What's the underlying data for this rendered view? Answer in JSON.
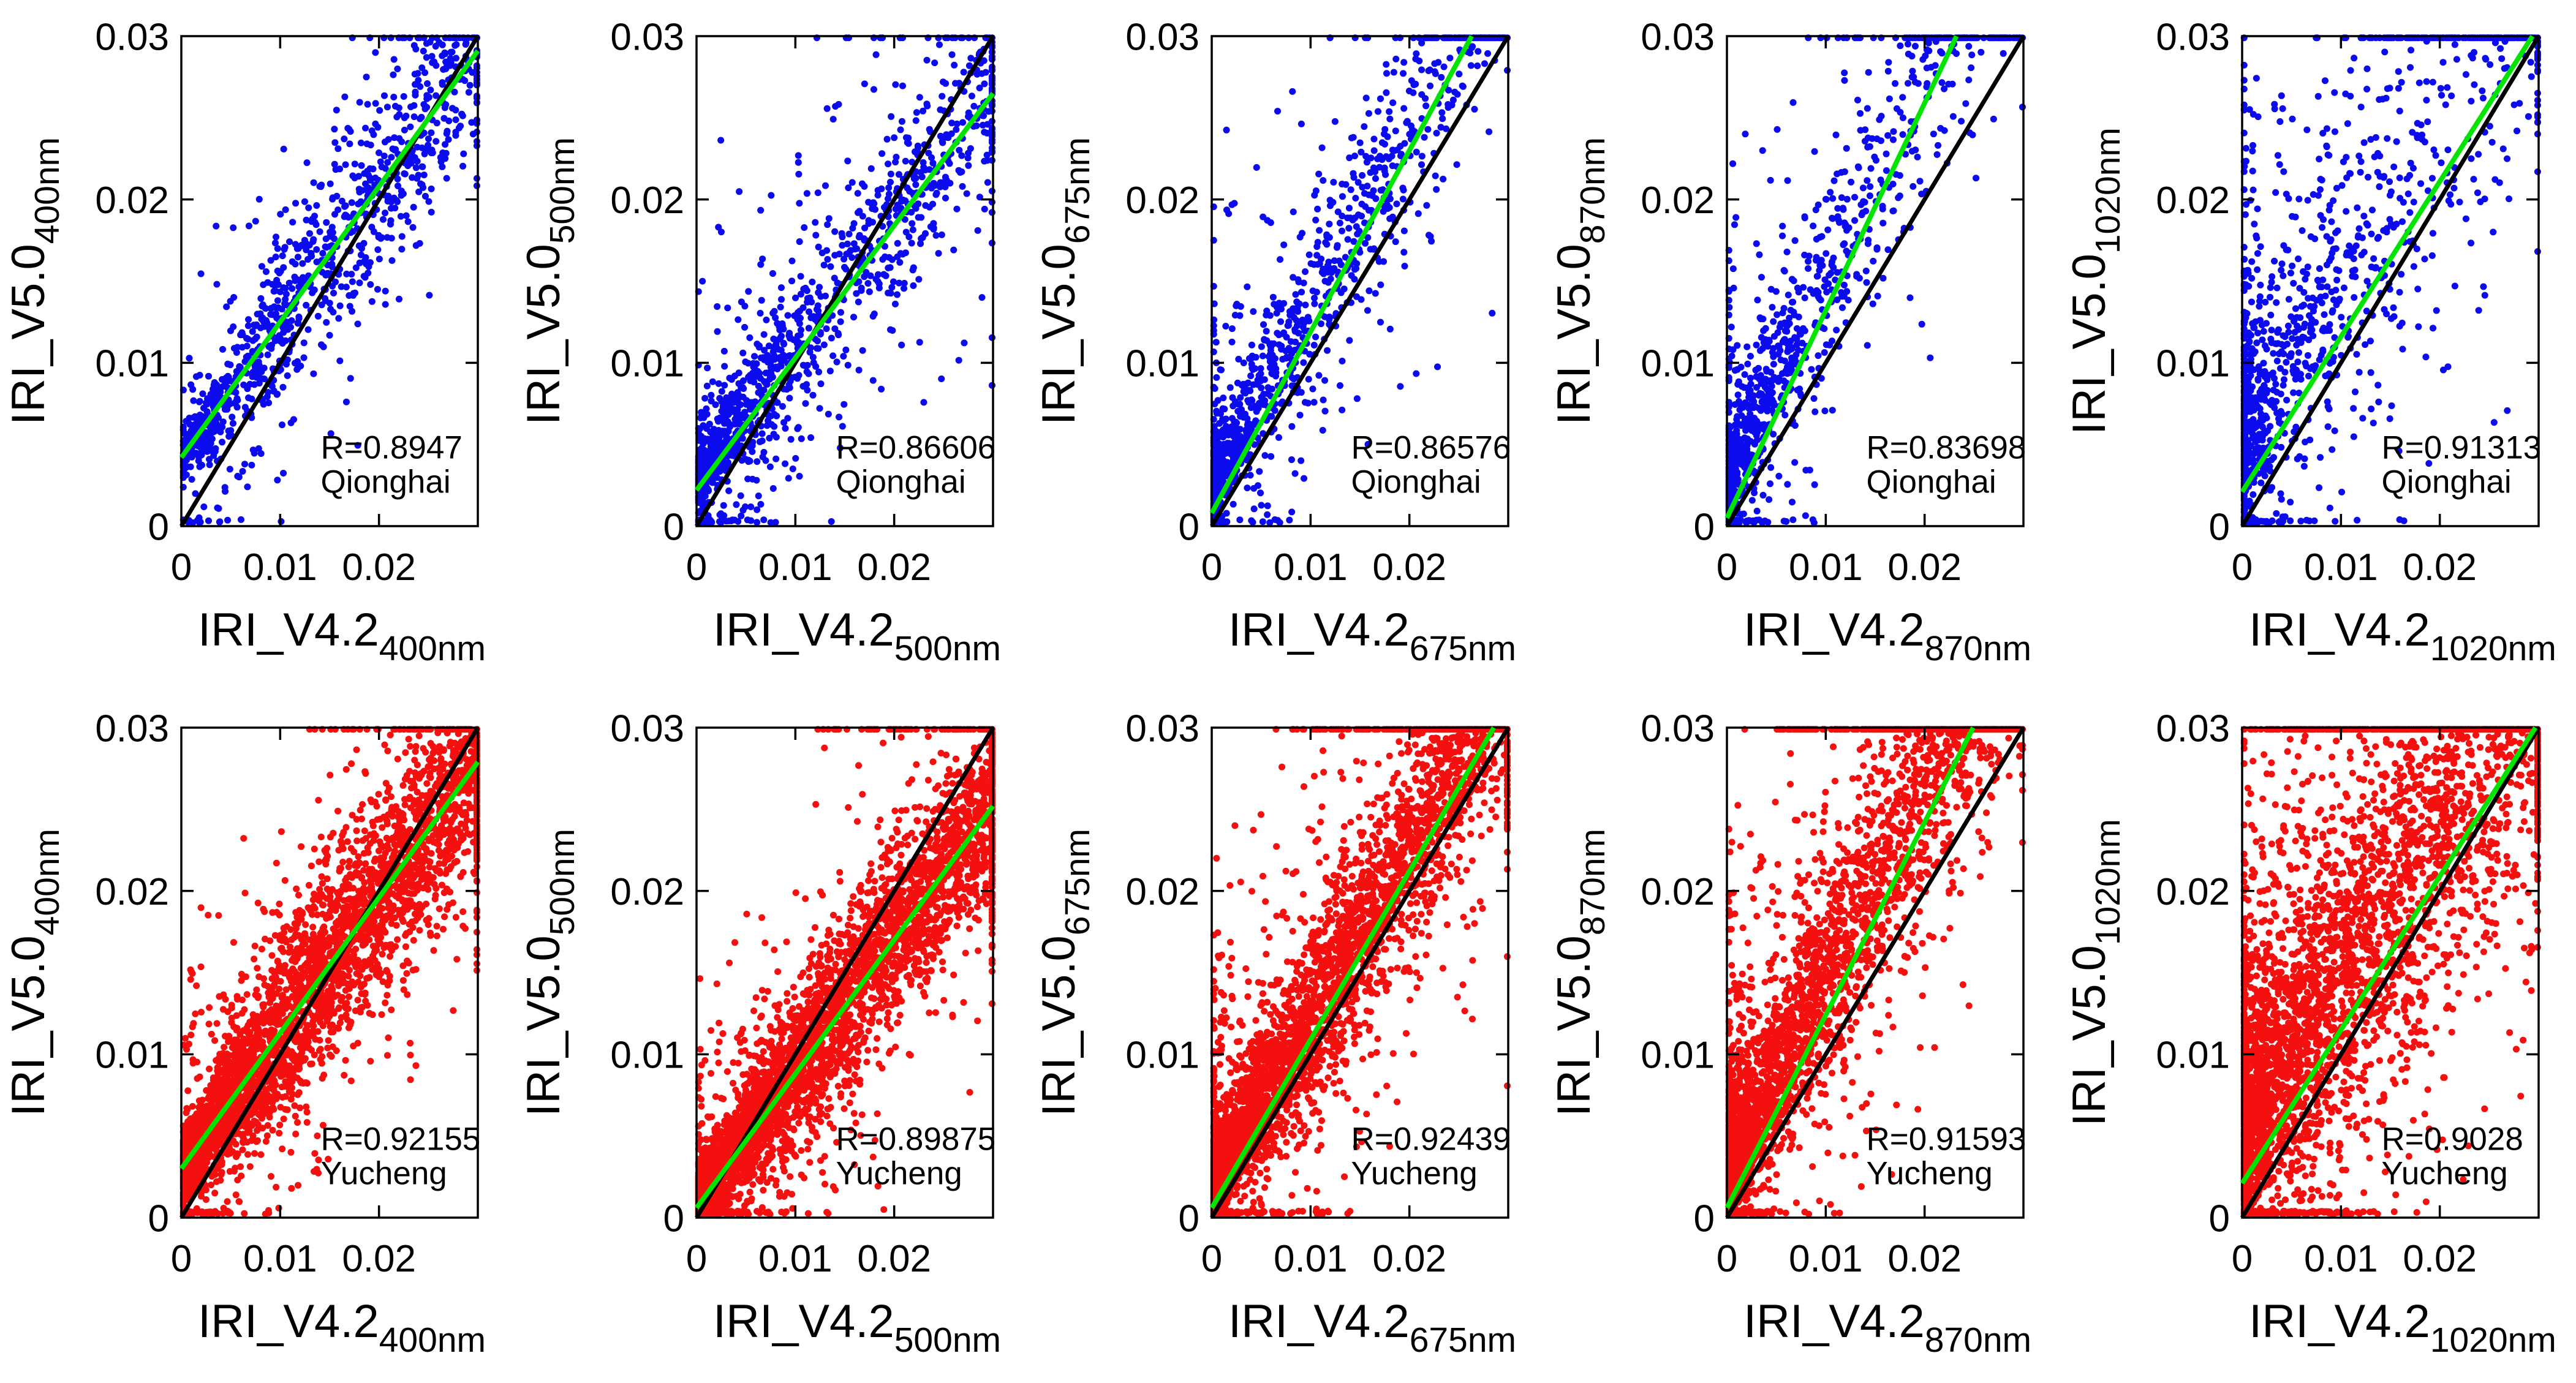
{
  "figure": {
    "background": "#ffffff",
    "text_color": "#000000",
    "colors": {
      "qionghai_marker": "#0b0bee",
      "yucheng_marker": "#f51010",
      "identity_line": "#000000",
      "fit_line": "#00e400",
      "axis": "#000000"
    },
    "axes": {
      "xlim": [
        0,
        0.03
      ],
      "ylim": [
        0,
        0.03
      ],
      "xticks": [
        0,
        0.01,
        0.02,
        0.03
      ],
      "yticks": [
        0,
        0.01,
        0.02,
        0.03
      ],
      "xtick_labels": [
        "0",
        "0.01",
        "0.02"
      ],
      "ytick_labels": [
        "0",
        "0.01",
        "0.02",
        "0.03"
      ],
      "grid": false,
      "box": true
    }
  },
  "chart_data": [
    {
      "type": "scatter",
      "row": 0,
      "col": 0,
      "site": "Qionghai",
      "wavelength": "400nm",
      "xlabel": {
        "main": "IRI_V4.2",
        "sub": "400nm"
      },
      "ylabel": {
        "main": "IRI_V5.0",
        "sub": "400nm"
      },
      "annotation": {
        "r_text": "R=0.8947",
        "site_text": "Qionghai"
      },
      "stats": {
        "r_value": 0.8947
      },
      "marker_color": "#0b0bee",
      "identity_line": {
        "slope": 1,
        "intercept": 0
      },
      "fit_line": {
        "slope": 0.83,
        "intercept": 0.0042
      },
      "render_hints": {
        "seed": 101,
        "n": 1100,
        "x_pow": 1.35,
        "p_tail": 0.15,
        "sd": 0.0028,
        "sd_tail": 0.006,
        "up_bias": 0,
        "x_edge": 0.015,
        "top_edge": 0.004,
        "top_edge_xmin": 0.01
      }
    },
    {
      "type": "scatter",
      "row": 0,
      "col": 1,
      "site": "Qionghai",
      "wavelength": "500nm",
      "xlabel": {
        "main": "IRI_V4.2",
        "sub": "500nm"
      },
      "ylabel": {
        "main": "IRI_V5.0",
        "sub": "500nm"
      },
      "annotation": {
        "r_text": "R=0.86606",
        "site_text": "Qionghai"
      },
      "stats": {
        "r_value": 0.86606
      },
      "marker_color": "#0b0bee",
      "identity_line": {
        "slope": 1,
        "intercept": 0
      },
      "fit_line": {
        "slope": 0.81,
        "intercept": 0.0022
      },
      "render_hints": {
        "seed": 102,
        "n": 1300,
        "x_pow": 1.95,
        "p_tail": 0.2,
        "sd": 0.0028,
        "sd_tail": 0.0068,
        "up_bias": 0.0008,
        "x_edge": 0.022,
        "top_edge": 0.005,
        "top_edge_xmin": 0.01
      }
    },
    {
      "type": "scatter",
      "row": 0,
      "col": 2,
      "site": "Qionghai",
      "wavelength": "675nm",
      "xlabel": {
        "main": "IRI_V4.2",
        "sub": "675nm"
      },
      "ylabel": {
        "main": "IRI_V5.0",
        "sub": "675nm"
      },
      "annotation": {
        "r_text": "R=0.86576",
        "site_text": "Qionghai"
      },
      "stats": {
        "r_value": 0.86576
      },
      "marker_color": "#0b0bee",
      "identity_line": {
        "slope": 1,
        "intercept": 0
      },
      "fit_line": {
        "slope": 1.11,
        "intercept": 0.0008
      },
      "render_hints": {
        "seed": 103,
        "n": 1200,
        "x_pow": 2.3,
        "p_tail": 0.22,
        "sd": 0.0028,
        "sd_tail": 0.0075,
        "up_bias": 0.0018,
        "x_edge": 0.008,
        "top_edge": 0.008,
        "top_edge_xmin": 0.01
      }
    },
    {
      "type": "scatter",
      "row": 0,
      "col": 3,
      "site": "Qionghai",
      "wavelength": "870nm",
      "xlabel": {
        "main": "IRI_V4.2",
        "sub": "870nm"
      },
      "ylabel": {
        "main": "IRI_V5.0",
        "sub": "870nm"
      },
      "annotation": {
        "r_text": "R=0.83698",
        "site_text": "Qionghai"
      },
      "stats": {
        "r_value": 0.83698
      },
      "marker_color": "#0b0bee",
      "identity_line": {
        "slope": 1,
        "intercept": 0
      },
      "fit_line": {
        "slope": 1.27,
        "intercept": 0.0005
      },
      "render_hints": {
        "seed": 104,
        "n": 1100,
        "x_pow": 2.6,
        "p_tail": 0.26,
        "sd": 0.003,
        "sd_tail": 0.0085,
        "up_bias": 0.0028,
        "x_edge": 0.006,
        "top_edge": 0.01,
        "top_edge_xmin": 0.008
      }
    },
    {
      "type": "scatter",
      "row": 0,
      "col": 4,
      "site": "Qionghai",
      "wavelength": "1020nm",
      "xlabel": {
        "main": "IRI_V4.2",
        "sub": "1020nm"
      },
      "ylabel": {
        "main": "IRI_V5.0",
        "sub": "1020nm"
      },
      "annotation": {
        "r_text": "R=0.91313",
        "site_text": "Qionghai"
      },
      "stats": {
        "r_value": 0.91313
      },
      "marker_color": "#0b0bee",
      "identity_line": {
        "slope": 1,
        "intercept": 0
      },
      "fit_line": {
        "slope": 0.95,
        "intercept": 0.0021
      },
      "render_hints": {
        "seed": 105,
        "n": 1300,
        "x_pow": 2.8,
        "p_tail": 0.32,
        "sd": 0.0042,
        "sd_tail": 0.0125,
        "up_bias": 0.0045,
        "x_edge": 0.045,
        "top_edge": 0.075,
        "top_edge_xmin": 0.012
      }
    },
    {
      "type": "scatter",
      "row": 1,
      "col": 0,
      "site": "Yucheng",
      "wavelength": "400nm",
      "xlabel": {
        "main": "IRI_V4.2",
        "sub": "400nm"
      },
      "ylabel": {
        "main": "IRI_V5.0",
        "sub": "400nm"
      },
      "annotation": {
        "r_text": "R=0.92155",
        "site_text": "Yucheng"
      },
      "stats": {
        "r_value": 0.92155
      },
      "marker_color": "#f51010",
      "identity_line": {
        "slope": 1,
        "intercept": 0
      },
      "fit_line": {
        "slope": 0.83,
        "intercept": 0.003
      },
      "render_hints": {
        "seed": 201,
        "n": 3800,
        "x_pow": 1.55,
        "p_tail": 0.12,
        "sd": 0.003,
        "sd_tail": 0.0058,
        "up_bias": 0,
        "x_edge": 0.028,
        "top_edge": 0.006,
        "top_edge_xmin": 0.012
      }
    },
    {
      "type": "scatter",
      "row": 1,
      "col": 1,
      "site": "Yucheng",
      "wavelength": "500nm",
      "xlabel": {
        "main": "IRI_V4.2",
        "sub": "500nm"
      },
      "ylabel": {
        "main": "IRI_V5.0",
        "sub": "500nm"
      },
      "annotation": {
        "r_text": "R=0.89875",
        "site_text": "Yucheng"
      },
      "stats": {
        "r_value": 0.89875
      },
      "marker_color": "#f51010",
      "identity_line": {
        "slope": 1,
        "intercept": 0
      },
      "fit_line": {
        "slope": 0.82,
        "intercept": 0.0006
      },
      "render_hints": {
        "seed": 202,
        "n": 4200,
        "x_pow": 1.75,
        "p_tail": 0.12,
        "sd": 0.0027,
        "sd_tail": 0.006,
        "up_bias": 0.0004,
        "x_edge": 0.035,
        "top_edge": 0.008,
        "top_edge_xmin": 0.012
      }
    },
    {
      "type": "scatter",
      "row": 1,
      "col": 2,
      "site": "Yucheng",
      "wavelength": "675nm",
      "xlabel": {
        "main": "IRI_V4.2",
        "sub": "675nm"
      },
      "ylabel": {
        "main": "IRI_V5.0",
        "sub": "675nm"
      },
      "annotation": {
        "r_text": "R=0.92439",
        "site_text": "Yucheng"
      },
      "stats": {
        "r_value": 0.92439
      },
      "marker_color": "#f51010",
      "identity_line": {
        "slope": 1,
        "intercept": 0
      },
      "fit_line": {
        "slope": 1.03,
        "intercept": 0.0006
      },
      "render_hints": {
        "seed": 203,
        "n": 3800,
        "x_pow": 1.85,
        "p_tail": 0.18,
        "sd": 0.0027,
        "sd_tail": 0.008,
        "up_bias": 0.0018,
        "x_edge": 0.02,
        "top_edge": 0.03,
        "top_edge_xmin": 0.008
      }
    },
    {
      "type": "scatter",
      "row": 1,
      "col": 3,
      "site": "Yucheng",
      "wavelength": "870nm",
      "xlabel": {
        "main": "IRI_V4.2",
        "sub": "870nm"
      },
      "ylabel": {
        "main": "IRI_V5.0",
        "sub": "870nm"
      },
      "annotation": {
        "r_text": "R=0.91593",
        "site_text": "Yucheng"
      },
      "stats": {
        "r_value": 0.91593
      },
      "marker_color": "#f51010",
      "identity_line": {
        "slope": 1,
        "intercept": 0
      },
      "fit_line": {
        "slope": 1.18,
        "intercept": 0.0006
      },
      "render_hints": {
        "seed": 204,
        "n": 3400,
        "x_pow": 2.25,
        "p_tail": 0.22,
        "sd": 0.0031,
        "sd_tail": 0.009,
        "up_bias": 0.0028,
        "x_edge": 0.015,
        "top_edge": 0.05,
        "top_edge_xmin": 0.005
      }
    },
    {
      "type": "scatter",
      "row": 1,
      "col": 4,
      "site": "Yucheng",
      "wavelength": "1020nm",
      "xlabel": {
        "main": "IRI_V4.2",
        "sub": "1020nm"
      },
      "ylabel": {
        "main": "IRI_V5.0",
        "sub": "1020nm"
      },
      "annotation": {
        "r_text": "R=0.9028",
        "site_text": "Yucheng"
      },
      "stats": {
        "r_value": 0.9028
      },
      "marker_color": "#f51010",
      "identity_line": {
        "slope": 1,
        "intercept": 0
      },
      "fit_line": {
        "slope": 0.94,
        "intercept": 0.0021
      },
      "render_hints": {
        "seed": 205,
        "n": 4200,
        "x_pow": 1.95,
        "p_tail": 0.3,
        "sd": 0.005,
        "sd_tail": 0.012,
        "up_bias": 0.0048,
        "x_edge": 0.055,
        "top_edge": 0.06,
        "top_edge_xmin": 0.002
      }
    }
  ]
}
